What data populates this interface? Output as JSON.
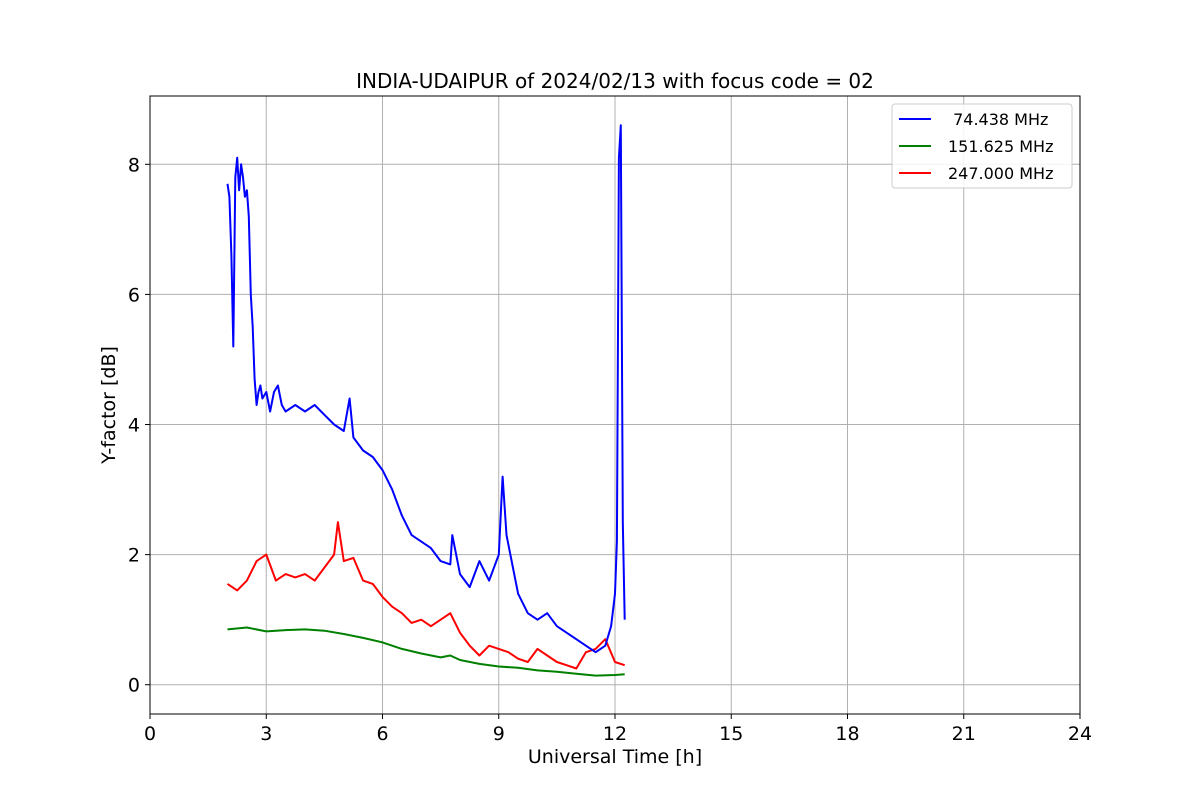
{
  "chart_data": {
    "type": "line",
    "title": "INDIA-UDAIPUR of 2024/02/13 with focus code = 02",
    "xlabel": "Universal Time [h]",
    "ylabel": "Y-factor [dB]",
    "xlim": [
      0,
      24
    ],
    "ylim": [
      -0.45,
      9.05
    ],
    "xticks": [
      0,
      3,
      6,
      9,
      12,
      15,
      18,
      21,
      24
    ],
    "yticks": [
      0,
      2,
      4,
      6,
      8
    ],
    "grid": true,
    "legend_position": "top-right",
    "series": [
      {
        "name": " 74.438 MHz",
        "color": "#0000ff",
        "x": [
          2.0,
          2.05,
          2.1,
          2.15,
          2.2,
          2.25,
          2.3,
          2.35,
          2.4,
          2.45,
          2.5,
          2.55,
          2.6,
          2.65,
          2.7,
          2.75,
          2.8,
          2.85,
          2.9,
          3.0,
          3.1,
          3.2,
          3.3,
          3.4,
          3.5,
          3.75,
          4.0,
          4.25,
          4.5,
          4.75,
          5.0,
          5.15,
          5.25,
          5.5,
          5.75,
          6.0,
          6.25,
          6.5,
          6.75,
          7.0,
          7.25,
          7.5,
          7.75,
          7.8,
          8.0,
          8.25,
          8.5,
          8.75,
          9.0,
          9.1,
          9.2,
          9.5,
          9.75,
          10.0,
          10.25,
          10.5,
          10.75,
          11.0,
          11.25,
          11.5,
          11.75,
          11.9,
          12.0,
          12.05,
          12.1,
          12.15,
          12.2,
          12.25
        ],
        "y": [
          7.7,
          7.5,
          6.6,
          5.2,
          7.8,
          8.1,
          7.6,
          8.0,
          7.8,
          7.5,
          7.6,
          7.2,
          6.0,
          5.5,
          4.7,
          4.3,
          4.5,
          4.6,
          4.4,
          4.5,
          4.2,
          4.5,
          4.6,
          4.3,
          4.2,
          4.3,
          4.2,
          4.3,
          4.15,
          4.0,
          3.9,
          4.4,
          3.8,
          3.6,
          3.5,
          3.3,
          3.0,
          2.6,
          2.3,
          2.2,
          2.1,
          1.9,
          1.85,
          2.3,
          1.7,
          1.5,
          1.9,
          1.6,
          2.0,
          3.2,
          2.3,
          1.4,
          1.1,
          1.0,
          1.1,
          0.9,
          0.8,
          0.7,
          0.6,
          0.5,
          0.6,
          0.9,
          1.4,
          2.2,
          8.1,
          8.6,
          2.5,
          1.0
        ]
      },
      {
        "name": "151.625 MHz",
        "color": "#008000",
        "x": [
          2.0,
          2.5,
          3.0,
          3.5,
          4.0,
          4.5,
          5.0,
          5.5,
          6.0,
          6.5,
          7.0,
          7.5,
          7.75,
          8.0,
          8.5,
          9.0,
          9.5,
          10.0,
          10.5,
          11.0,
          11.5,
          12.0,
          12.25
        ],
        "y": [
          0.85,
          0.88,
          0.82,
          0.84,
          0.85,
          0.83,
          0.78,
          0.72,
          0.65,
          0.55,
          0.48,
          0.42,
          0.45,
          0.38,
          0.32,
          0.28,
          0.26,
          0.22,
          0.2,
          0.17,
          0.14,
          0.15,
          0.16
        ]
      },
      {
        "name": "247.000 MHz",
        "color": "#ff0000",
        "x": [
          2.0,
          2.25,
          2.5,
          2.75,
          3.0,
          3.25,
          3.5,
          3.75,
          4.0,
          4.25,
          4.5,
          4.75,
          4.85,
          5.0,
          5.25,
          5.5,
          5.75,
          6.0,
          6.25,
          6.5,
          6.75,
          7.0,
          7.25,
          7.5,
          7.75,
          8.0,
          8.25,
          8.5,
          8.75,
          9.0,
          9.25,
          9.5,
          9.75,
          10.0,
          10.25,
          10.5,
          10.75,
          11.0,
          11.25,
          11.5,
          11.75,
          12.0,
          12.25
        ],
        "y": [
          1.55,
          1.45,
          1.6,
          1.9,
          2.0,
          1.6,
          1.7,
          1.65,
          1.7,
          1.6,
          1.8,
          2.0,
          2.5,
          1.9,
          1.95,
          1.6,
          1.55,
          1.35,
          1.2,
          1.1,
          0.95,
          1.0,
          0.9,
          1.0,
          1.1,
          0.8,
          0.6,
          0.45,
          0.6,
          0.55,
          0.5,
          0.4,
          0.35,
          0.55,
          0.45,
          0.35,
          0.3,
          0.25,
          0.5,
          0.55,
          0.7,
          0.35,
          0.3
        ]
      }
    ]
  }
}
